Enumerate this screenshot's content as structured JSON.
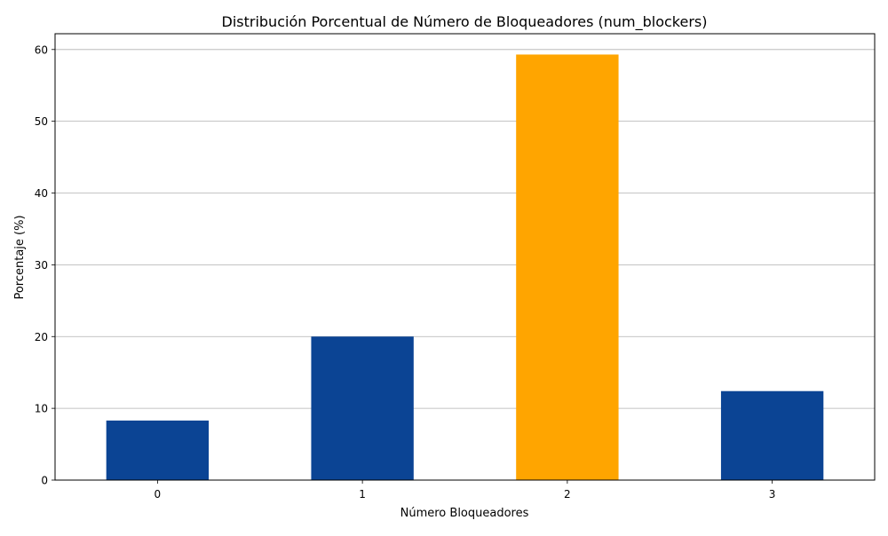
{
  "chart_data": {
    "type": "bar",
    "title": "Distribución Porcentual de Número de Bloqueadores (num_blockers)",
    "xlabel": "Número Bloqueadores",
    "ylabel": "Porcentaje (%)",
    "categories": [
      "0",
      "1",
      "2",
      "3"
    ],
    "values": [
      8.3,
      20.0,
      59.3,
      12.4
    ],
    "bar_colors": [
      "#0b4494",
      "#0b4494",
      "#ffa500",
      "#0b4494"
    ],
    "ylim": [
      0,
      62.2
    ],
    "yticks": [
      0,
      10,
      20,
      30,
      40,
      50,
      60
    ],
    "grid": "y",
    "legend": "none"
  }
}
